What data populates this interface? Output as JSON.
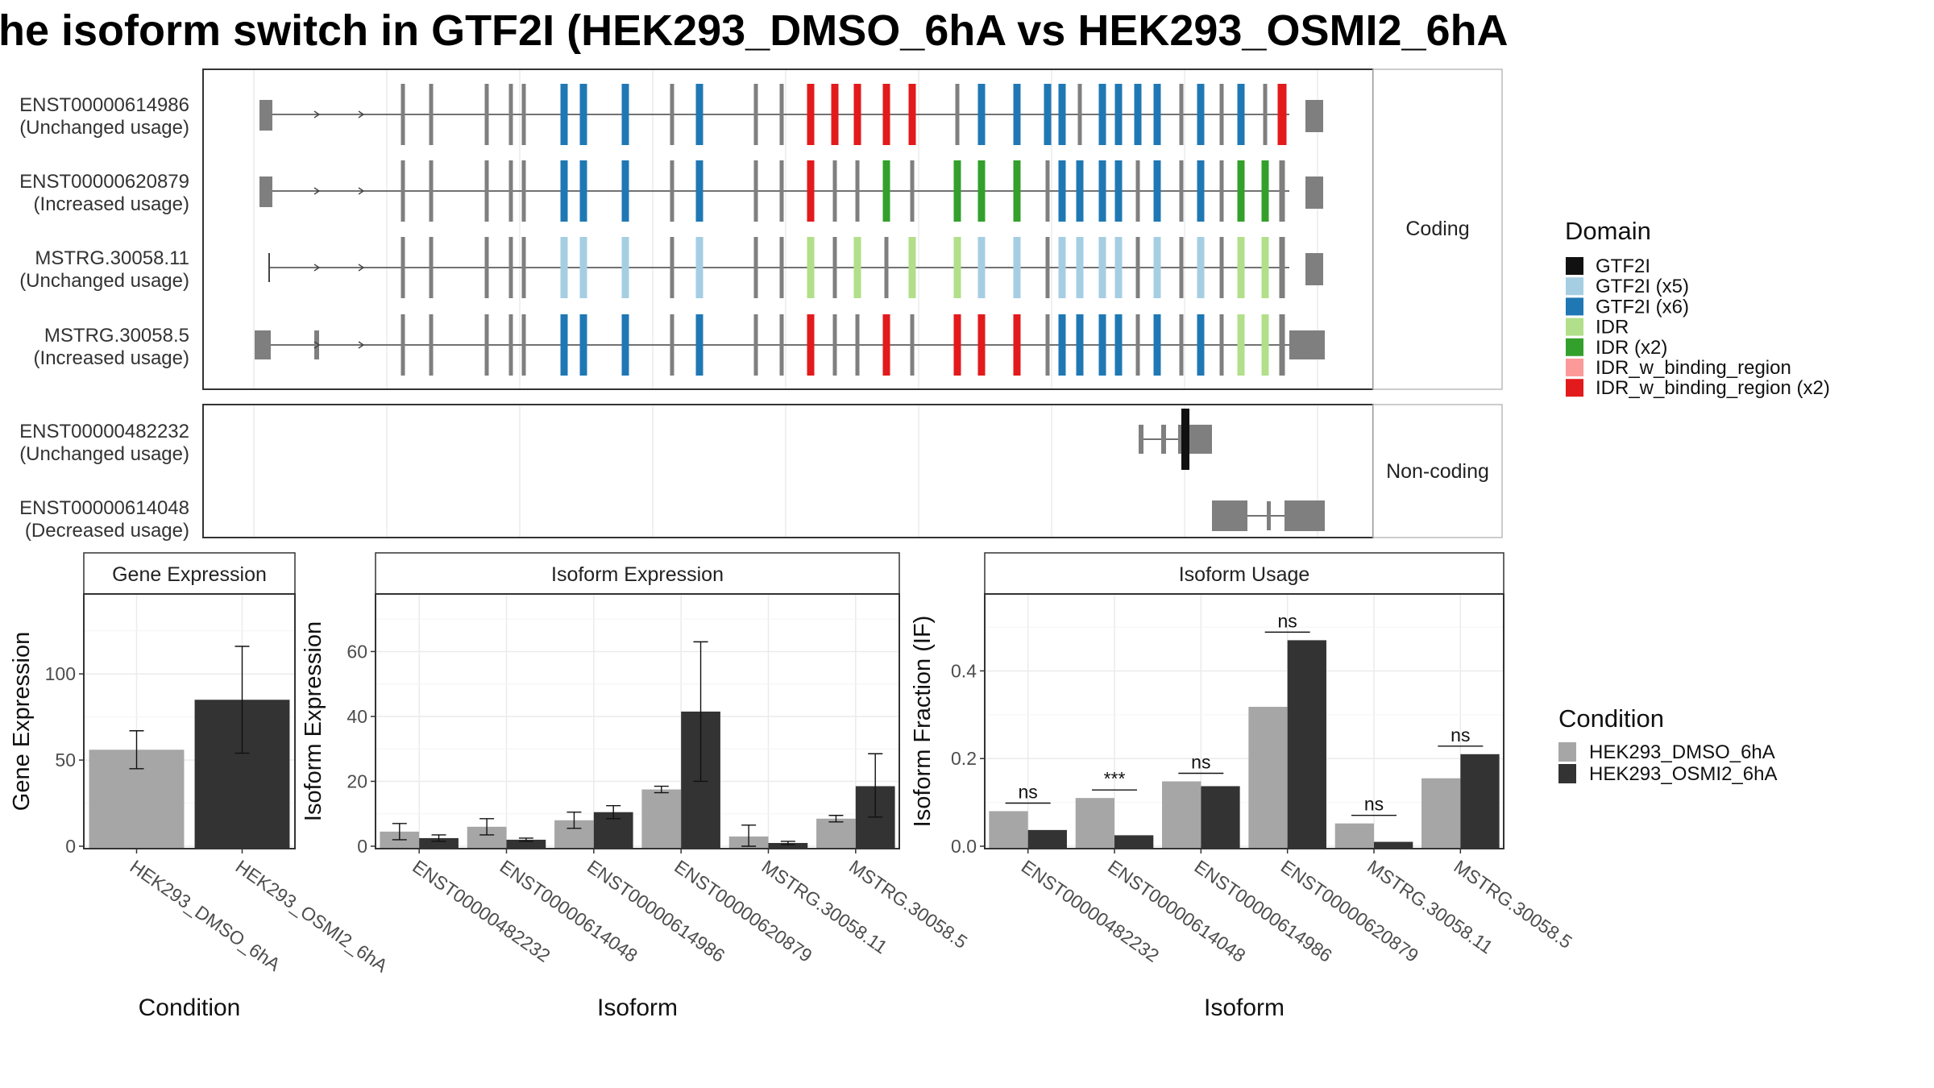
{
  "title": "he isoform switch in GTF2I (HEK293_DMSO_6hA vs HEK293_OSMI2_6hA",
  "colors": {
    "background": "#ffffff",
    "panel_border": "#333333",
    "grid": "#ebebeb",
    "strip_fill": "#ffffff",
    "dmso": "#a6a6a6",
    "osmi2": "#333333",
    "exon_gray": "#7f7f7f"
  },
  "facets": {
    "coding_label": "Coding",
    "noncoding_label": "Non-coding"
  },
  "domain_legend": {
    "title": "Domain",
    "items": [
      {
        "label": "GTF2I",
        "color": "#111111"
      },
      {
        "label": "GTF2I (x5)",
        "color": "#a6cee3"
      },
      {
        "label": "GTF2I (x6)",
        "color": "#1f78b4"
      },
      {
        "label": "IDR",
        "color": "#b2df8a"
      },
      {
        "label": "IDR (x2)",
        "color": "#33a02c"
      },
      {
        "label": "IDR_w_binding_region",
        "color": "#fb9a99"
      },
      {
        "label": "IDR_w_binding_region (x2)",
        "color": "#e31a1c"
      }
    ]
  },
  "condition_legend": {
    "title": "Condition",
    "items": [
      {
        "label": "HEK293_DMSO_6hA",
        "color": "#a6a6a6"
      },
      {
        "label": "HEK293_OSMI2_6hA",
        "color": "#333333"
      }
    ]
  },
  "transcripts": {
    "coding": [
      {
        "name": "ENST00000614986",
        "usage": "(Unchanged usage)",
        "pattern": "ggggg666g6gg22222g6666g6666g6g6g22gg66g6g66g262222gg222g22gg6g6ggg222gggg",
        "has_leader": true
      },
      {
        "name": "ENST00000620879",
        "usage": "(Increased usage)",
        "pattern": "ggggg666g6gg2gg4g444g6666g6g6g44gg666g6g66g662222gg222g22gg6g6ggg555gggg",
        "has_leader": true
      },
      {
        "name": "MSTRG.30058.11",
        "usage": "(Unchanged usage)",
        "pattern": "ggggg555g5gg3g3g3355g5555g5g5g33gg5g5g5g55gg55g5g5g5gggg5g5ggg555gggg",
        "has_leader": false
      },
      {
        "name": "MSTRG.30058.5",
        "usage": "(Increased usage)",
        "pattern": "ggggg666g6gg2gg2g222g6666g6g6g33gg666g6g66g662222gg222g22gg6g6ggg222gggg",
        "has_leader": true
      }
    ],
    "noncoding": [
      {
        "name": "ENST00000482232",
        "usage": "(Unchanged usage)"
      },
      {
        "name": "ENST00000614048",
        "usage": "(Decreased usage)"
      }
    ]
  },
  "chart_data": [
    {
      "type": "bar",
      "title": "Gene Expression",
      "xlabel": "Condition",
      "ylabel": "Gene Expression",
      "categories": [
        "HEK293_DMSO_6hA",
        "HEK293_OSMI2_6hA"
      ],
      "values": [
        56,
        85
      ],
      "errors_low": [
        45,
        54
      ],
      "errors_high": [
        67,
        116
      ],
      "yticks": [
        "0",
        "50",
        "100"
      ],
      "ylim": [
        0,
        145
      ]
    },
    {
      "type": "bar",
      "title": "Isoform Expression",
      "xlabel": "Isoform",
      "ylabel": "Isoform Expression",
      "categories": [
        "ENST00000482232",
        "ENST00000614048",
        "ENST00000614986",
        "ENST00000620879",
        "MSTRG.30058.11",
        "MSTRG.30058.5"
      ],
      "series": [
        {
          "name": "HEK293_DMSO_6hA",
          "values": [
            4.5,
            6,
            8,
            17.5,
            3,
            8.5
          ],
          "errors_low": [
            2,
            3.5,
            5.5,
            16.5,
            0,
            7.5
          ],
          "errors_high": [
            7,
            8.5,
            10.5,
            18.5,
            6.5,
            9.5
          ]
        },
        {
          "name": "HEK293_OSMI2_6hA",
          "values": [
            2.5,
            2,
            10.5,
            41.5,
            1,
            18.5
          ],
          "errors_low": [
            1.5,
            1.5,
            8.5,
            20,
            0.5,
            9
          ],
          "errors_high": [
            3.5,
            2.5,
            12.5,
            63,
            1.5,
            28.5
          ]
        }
      ],
      "yticks": [
        "0",
        "20",
        "40",
        "60"
      ],
      "ylim": [
        0,
        77
      ]
    },
    {
      "type": "bar",
      "title": "Isoform Usage",
      "xlabel": "Isoform",
      "ylabel": "Isoform Fraction (IF)",
      "categories": [
        "ENST00000482232",
        "ENST00000614048",
        "ENST00000614986",
        "ENST00000620879",
        "MSTRG.30058.11",
        "MSTRG.30058.5"
      ],
      "series": [
        {
          "name": "HEK293_DMSO_6hA",
          "values": [
            0.08,
            0.11,
            0.148,
            0.318,
            0.052,
            0.155
          ]
        },
        {
          "name": "HEK293_OSMI2_6hA",
          "values": [
            0.037,
            0.025,
            0.137,
            0.47,
            0.01,
            0.21
          ]
        }
      ],
      "significance": [
        "ns",
        "***",
        "ns",
        "ns",
        "ns",
        "ns"
      ],
      "yticks": [
        "0.0",
        "0.2",
        "0.4"
      ],
      "ylim": [
        0,
        0.57
      ]
    }
  ]
}
